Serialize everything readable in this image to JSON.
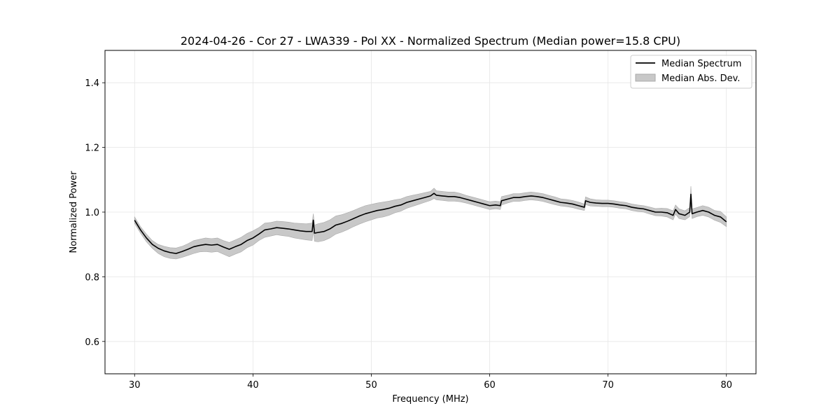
{
  "chart_data": {
    "type": "line",
    "title": "2024-04-26 - Cor 27 - LWA339 - Pol XX - Normalized Spectrum (Median power=15.8 CPU)",
    "xlabel": "Frequency (MHz)",
    "ylabel": "Normalized Power",
    "xlim": [
      27.5,
      82.5
    ],
    "ylim": [
      0.5,
      1.5
    ],
    "xticks": [
      30,
      40,
      50,
      60,
      70,
      80
    ],
    "yticks": [
      0.6,
      0.8,
      1.0,
      1.2,
      1.4
    ],
    "xtick_labels": [
      "30",
      "40",
      "50",
      "60",
      "70",
      "80"
    ],
    "ytick_labels": [
      "0.6",
      "0.8",
      "1.0",
      "1.2",
      "1.4"
    ],
    "grid": true,
    "legend_position": "top-right",
    "legend": [
      "Median Spectrum",
      "Median Abs. Dev."
    ],
    "colors": {
      "line": "#000000",
      "band": "#c8c8c8",
      "band_edge": "#aaaaaa",
      "grid": "#e6e6e6"
    },
    "series": [
      {
        "name": "Median Spectrum",
        "x": [
          30,
          30.5,
          31,
          31.5,
          32,
          32.5,
          33,
          33.5,
          34,
          34.5,
          35,
          35.5,
          36,
          36.5,
          37,
          37.5,
          38,
          38.5,
          39,
          39.5,
          40,
          40.5,
          41,
          41.5,
          42,
          42.5,
          43,
          43.5,
          44,
          44.5,
          45,
          45.1,
          45.2,
          45.5,
          46,
          46.5,
          47,
          47.5,
          48,
          48.5,
          49,
          49.5,
          50,
          50.5,
          51,
          51.5,
          52,
          52.5,
          53,
          53.5,
          54,
          54.5,
          55,
          55.3,
          55.5,
          56,
          56.5,
          57,
          57.5,
          58,
          58.5,
          59,
          59.5,
          60,
          60.5,
          60.9,
          61,
          61.5,
          62,
          62.5,
          63,
          63.5,
          64,
          64.5,
          65,
          65.5,
          66,
          66.5,
          67,
          67.5,
          68,
          68.1,
          68.5,
          69,
          69.5,
          70,
          70.5,
          71,
          71.5,
          72,
          72.5,
          73,
          73.5,
          74,
          74.5,
          75,
          75.5,
          75.7,
          76,
          76.5,
          76.9,
          77,
          77.1,
          77.5,
          78,
          78.5,
          79,
          79.5,
          80
        ],
        "values": [
          0.975,
          0.945,
          0.92,
          0.9,
          0.888,
          0.88,
          0.875,
          0.872,
          0.878,
          0.885,
          0.893,
          0.897,
          0.9,
          0.898,
          0.9,
          0.892,
          0.885,
          0.893,
          0.9,
          0.912,
          0.92,
          0.932,
          0.945,
          0.948,
          0.952,
          0.95,
          0.948,
          0.945,
          0.942,
          0.94,
          0.94,
          0.975,
          0.935,
          0.937,
          0.94,
          0.948,
          0.96,
          0.965,
          0.972,
          0.98,
          0.988,
          0.995,
          1.0,
          1.005,
          1.008,
          1.012,
          1.018,
          1.022,
          1.03,
          1.035,
          1.04,
          1.045,
          1.05,
          1.058,
          1.052,
          1.05,
          1.048,
          1.048,
          1.045,
          1.04,
          1.035,
          1.03,
          1.025,
          1.02,
          1.022,
          1.02,
          1.035,
          1.04,
          1.045,
          1.045,
          1.048,
          1.05,
          1.048,
          1.045,
          1.04,
          1.035,
          1.03,
          1.028,
          1.025,
          1.02,
          1.015,
          1.035,
          1.03,
          1.028,
          1.027,
          1.027,
          1.025,
          1.022,
          1.02,
          1.015,
          1.012,
          1.01,
          1.005,
          1.0,
          1.0,
          0.998,
          0.99,
          1.008,
          0.995,
          0.99,
          1.0,
          1.055,
          0.995,
          1.0,
          1.005,
          1.0,
          0.99,
          0.985,
          0.97
        ]
      },
      {
        "name": "Median Abs. Dev.",
        "lower": [
          0.965,
          0.935,
          0.908,
          0.888,
          0.872,
          0.862,
          0.857,
          0.855,
          0.86,
          0.866,
          0.872,
          0.877,
          0.878,
          0.876,
          0.878,
          0.87,
          0.862,
          0.87,
          0.877,
          0.89,
          0.898,
          0.912,
          0.922,
          0.926,
          0.93,
          0.927,
          0.925,
          0.92,
          0.917,
          0.914,
          0.912,
          0.94,
          0.91,
          0.908,
          0.912,
          0.92,
          0.932,
          0.938,
          0.946,
          0.955,
          0.963,
          0.97,
          0.976,
          0.982,
          0.985,
          0.99,
          0.998,
          1.003,
          1.012,
          1.018,
          1.024,
          1.03,
          1.036,
          1.042,
          1.038,
          1.036,
          1.034,
          1.034,
          1.032,
          1.028,
          1.023,
          1.018,
          1.013,
          1.008,
          1.01,
          1.008,
          1.022,
          1.028,
          1.033,
          1.033,
          1.036,
          1.038,
          1.036,
          1.033,
          1.028,
          1.023,
          1.019,
          1.017,
          1.014,
          1.009,
          1.005,
          1.023,
          1.019,
          1.018,
          1.017,
          1.017,
          1.015,
          1.012,
          1.01,
          1.005,
          1.002,
          1.0,
          0.994,
          0.989,
          0.988,
          0.985,
          0.976,
          0.994,
          0.98,
          0.976,
          0.986,
          1.03,
          0.98,
          0.986,
          0.99,
          0.985,
          0.975,
          0.968,
          0.955
        ],
        "upper": [
          0.985,
          0.955,
          0.932,
          0.912,
          0.9,
          0.894,
          0.89,
          0.889,
          0.894,
          0.902,
          0.912,
          0.916,
          0.92,
          0.918,
          0.92,
          0.912,
          0.906,
          0.914,
          0.922,
          0.934,
          0.942,
          0.952,
          0.966,
          0.968,
          0.972,
          0.971,
          0.969,
          0.966,
          0.965,
          0.964,
          0.966,
          0.995,
          0.96,
          0.964,
          0.968,
          0.976,
          0.988,
          0.992,
          0.998,
          1.005,
          1.013,
          1.02,
          1.024,
          1.028,
          1.031,
          1.034,
          1.038,
          1.041,
          1.048,
          1.052,
          1.056,
          1.06,
          1.064,
          1.074,
          1.066,
          1.064,
          1.062,
          1.062,
          1.058,
          1.052,
          1.047,
          1.042,
          1.037,
          1.032,
          1.034,
          1.032,
          1.048,
          1.052,
          1.057,
          1.057,
          1.06,
          1.062,
          1.06,
          1.057,
          1.052,
          1.047,
          1.041,
          1.039,
          1.036,
          1.031,
          1.025,
          1.047,
          1.041,
          1.038,
          1.037,
          1.037,
          1.035,
          1.032,
          1.03,
          1.025,
          1.022,
          1.02,
          1.016,
          1.011,
          1.012,
          1.011,
          1.004,
          1.022,
          1.01,
          1.004,
          1.014,
          1.08,
          1.01,
          1.014,
          1.02,
          1.015,
          1.005,
          1.002,
          0.985
        ]
      }
    ]
  }
}
